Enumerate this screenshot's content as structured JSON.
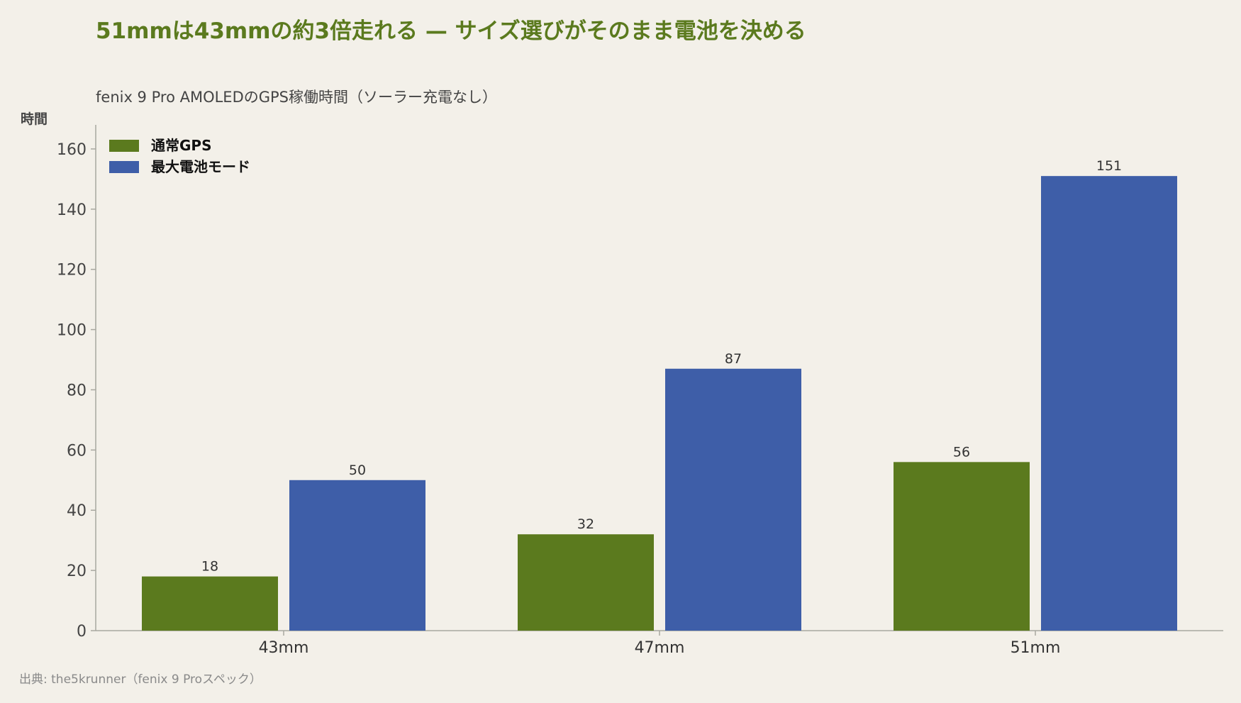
{
  "header": {
    "title": "51mmは43mmの約3倍走れる — サイズ選びがそのまま電池を決める",
    "subtitle": "fenix 9 Pro AMOLEDのGPS稼働時間（ソーラー充電なし）"
  },
  "footer": {
    "source": "出典: the5krunner（fenix 9 Proスペック）"
  },
  "chart_data": {
    "type": "bar",
    "title": "51mmは43mmの約3倍走れる — サイズ選びがそのまま電池を決める",
    "subtitle": "fenix 9 Pro AMOLEDのGPS稼働時間（ソーラー充電なし）",
    "xlabel": "",
    "ylabel": "時間",
    "ylim": [
      0,
      168
    ],
    "yticks": [
      0,
      20,
      40,
      60,
      80,
      100,
      120,
      140,
      160
    ],
    "categories": [
      "43mm",
      "47mm",
      "51mm"
    ],
    "series": [
      {
        "name": "通常GPS",
        "values": [
          18,
          32,
          56
        ],
        "color": "#5b7a1e"
      },
      {
        "name": "最大電池モード",
        "values": [
          50,
          87,
          151
        ],
        "color": "#3e5ea8"
      }
    ],
    "legend": "top-left",
    "grid": false
  }
}
